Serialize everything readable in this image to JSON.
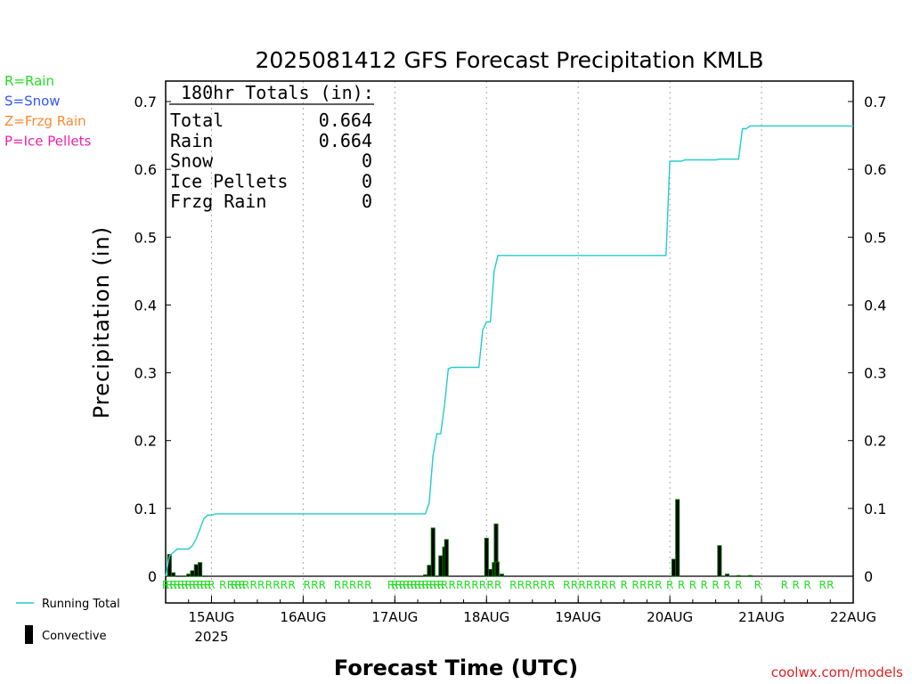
{
  "chart_data": {
    "type": "line",
    "title": "2025081412 GFS Forecast Precipitation KMLB",
    "ylabel": "Precipitation (in)",
    "xlabel": "Forecast Time (UTC)",
    "ylim": [
      0,
      0.73
    ],
    "yticks": [
      "0",
      "0.1",
      "0.2",
      "0.3",
      "0.4",
      "0.5",
      "0.6",
      "0.7"
    ],
    "ytick_values": [
      0,
      0.1,
      0.2,
      0.3,
      0.4,
      0.5,
      0.6,
      0.7
    ],
    "xlim_hours": [
      12,
      192
    ],
    "xticks": [
      {
        "label": "15AUG",
        "hour": 24,
        "sublabel": "2025"
      },
      {
        "label": "16AUG",
        "hour": 48
      },
      {
        "label": "17AUG",
        "hour": 72
      },
      {
        "label": "18AUG",
        "hour": 96
      },
      {
        "label": "19AUG",
        "hour": 120
      },
      {
        "label": "20AUG",
        "hour": 144
      },
      {
        "label": "21AUG",
        "hour": 168
      },
      {
        "label": "22AUG",
        "hour": 192
      }
    ],
    "grid": true,
    "precip_type_legend": [
      {
        "text": "R=Rain",
        "color": "#22dd22"
      },
      {
        "text": "S=Snow",
        "color": "#3355ff"
      },
      {
        "text": "Z=Frzg Rain",
        "color": "#ff8833"
      },
      {
        "text": "P=Ice Pellets",
        "color": "#ee22aa"
      }
    ],
    "totals_box": {
      "header": "180hr Totals (in):",
      "rows": [
        {
          "label": "Total",
          "value": "0.664"
        },
        {
          "label": "Rain",
          "value": "0.664"
        },
        {
          "label": "Snow",
          "value": "0"
        },
        {
          "label": "Ice Pellets",
          "value": "0"
        },
        {
          "label": "Frzg Rain",
          "value": "0"
        }
      ]
    },
    "series": [
      {
        "name": "Running Total",
        "type": "line",
        "color": "#22cccc",
        "x": [
          12,
          13,
          14,
          15,
          16,
          17,
          18,
          19,
          20,
          21,
          22,
          23,
          24,
          25,
          30,
          40,
          50,
          60,
          70,
          71,
          72,
          73,
          74,
          75,
          76,
          77,
          78,
          79,
          80,
          81,
          82,
          83,
          84,
          85,
          86,
          87,
          88,
          89,
          90,
          91,
          92,
          93,
          94,
          95,
          96,
          97,
          98,
          99,
          100,
          101,
          102,
          103,
          104,
          108,
          112,
          116,
          120,
          124,
          128,
          132,
          133,
          134,
          135,
          136,
          137,
          138,
          139,
          140,
          141,
          142,
          143,
          144,
          145,
          146,
          147,
          148,
          149,
          150,
          151,
          152,
          153,
          154,
          155,
          156,
          157,
          158,
          159,
          160,
          161,
          162,
          163,
          164,
          165,
          166,
          170,
          180,
          192
        ],
        "y": [
          0.0,
          0.03,
          0.035,
          0.04,
          0.04,
          0.04,
          0.04,
          0.045,
          0.055,
          0.07,
          0.085,
          0.09,
          0.09,
          0.092,
          0.092,
          0.092,
          0.092,
          0.092,
          0.092,
          0.092,
          0.092,
          0.092,
          0.092,
          0.092,
          0.092,
          0.092,
          0.092,
          0.092,
          0.092,
          0.108,
          0.178,
          0.21,
          0.21,
          0.252,
          0.306,
          0.308,
          0.308,
          0.308,
          0.308,
          0.308,
          0.308,
          0.308,
          0.308,
          0.363,
          0.375,
          0.375,
          0.45,
          0.473,
          0.473,
          0.473,
          0.473,
          0.473,
          0.473,
          0.473,
          0.473,
          0.473,
          0.473,
          0.473,
          0.473,
          0.473,
          0.473,
          0.473,
          0.473,
          0.473,
          0.473,
          0.473,
          0.473,
          0.473,
          0.473,
          0.473,
          0.473,
          0.612,
          0.612,
          0.612,
          0.612,
          0.614,
          0.614,
          0.614,
          0.614,
          0.614,
          0.614,
          0.614,
          0.614,
          0.614,
          0.615,
          0.615,
          0.615,
          0.615,
          0.615,
          0.615,
          0.66,
          0.66,
          0.664,
          0.664,
          0.664,
          0.664,
          0.664
        ]
      },
      {
        "name": "Convective",
        "type": "bar",
        "color": "#006600",
        "x": [
          13,
          14,
          18,
          19,
          20,
          21,
          80,
          81,
          82,
          84,
          85,
          85.5,
          96,
          97,
          98,
          98.5,
          98.8,
          100,
          145,
          146,
          157,
          159,
          162,
          165
        ],
        "values": [
          0.032,
          0.005,
          0.003,
          0.008,
          0.017,
          0.02,
          0.002,
          0.016,
          0.071,
          0.03,
          0.043,
          0.054,
          0.056,
          0.01,
          0.02,
          0.077,
          0.021,
          0.003,
          0.025,
          0.113,
          0.045,
          0.003,
          0.001,
          0.001
        ]
      }
    ],
    "precip_type_markers": {
      "letter": "R",
      "color": "#22dd22",
      "hours": [
        12,
        13,
        14,
        15,
        16,
        17,
        18,
        19,
        20,
        21,
        22,
        23,
        24,
        27,
        29,
        30,
        31,
        32,
        33,
        35,
        37,
        39,
        41,
        43,
        45,
        49,
        51,
        53,
        57,
        59,
        61,
        63,
        65,
        71,
        72,
        73,
        74,
        75,
        76,
        77,
        78,
        79,
        80,
        81,
        82,
        83,
        84,
        85,
        87,
        89,
        91,
        93,
        95,
        97,
        99,
        103,
        105,
        107,
        109,
        111,
        113,
        117,
        119,
        121,
        123,
        125,
        127,
        129,
        132,
        135,
        137,
        139,
        141,
        144,
        147,
        150,
        153,
        156,
        159,
        162,
        167,
        174,
        177,
        180,
        184,
        186
      ]
    },
    "bottom_legend": [
      {
        "label": "Running Total",
        "color": "#22cccc"
      },
      {
        "label": "Convective",
        "color": "#000000"
      }
    ],
    "credit": "coolwx.com/models"
  }
}
